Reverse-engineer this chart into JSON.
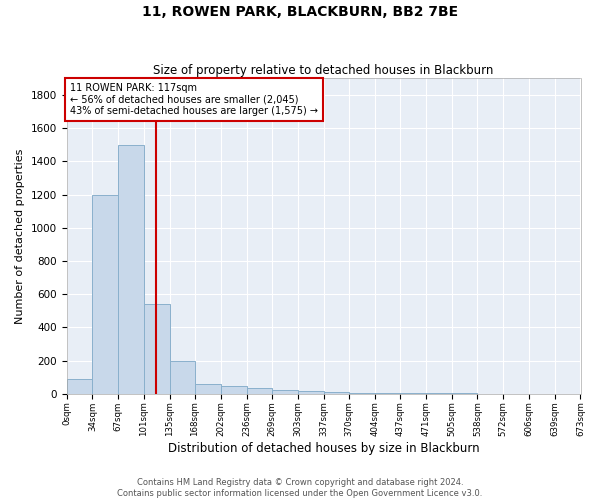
{
  "title": "11, ROWEN PARK, BLACKBURN, BB2 7BE",
  "subtitle": "Size of property relative to detached houses in Blackburn",
  "xlabel": "Distribution of detached houses by size in Blackburn",
  "ylabel": "Number of detached properties",
  "footer_line1": "Contains HM Land Registry data © Crown copyright and database right 2024.",
  "footer_line2": "Contains public sector information licensed under the Open Government Licence v3.0.",
  "bar_color": "#c8d8ea",
  "bar_edge_color": "#8ab0cc",
  "background_color": "#e8eef6",
  "grid_color": "#ffffff",
  "property_size": 117,
  "red_line_color": "#cc0000",
  "annotation_text": "11 ROWEN PARK: 117sqm\n← 56% of detached houses are smaller (2,045)\n43% of semi-detached houses are larger (1,575) →",
  "annotation_box_color": "#ffffff",
  "annotation_box_edge_color": "#cc0000",
  "bin_edges": [
    0,
    34,
    67,
    101,
    135,
    168,
    202,
    236,
    269,
    303,
    337,
    370,
    404,
    437,
    471,
    505,
    538,
    572,
    606,
    639,
    673
  ],
  "bin_labels": [
    "0sqm",
    "34sqm",
    "67sqm",
    "101sqm",
    "135sqm",
    "168sqm",
    "202sqm",
    "236sqm",
    "269sqm",
    "303sqm",
    "337sqm",
    "370sqm",
    "404sqm",
    "437sqm",
    "471sqm",
    "505sqm",
    "538sqm",
    "572sqm",
    "606sqm",
    "639sqm",
    "673sqm"
  ],
  "bar_heights": [
    90,
    1200,
    1500,
    540,
    200,
    60,
    45,
    35,
    25,
    15,
    10,
    5,
    5,
    5,
    3,
    3,
    2,
    2,
    2,
    2
  ],
  "ylim": [
    0,
    1900
  ],
  "yticks": [
    0,
    200,
    400,
    600,
    800,
    1000,
    1200,
    1400,
    1600,
    1800
  ]
}
